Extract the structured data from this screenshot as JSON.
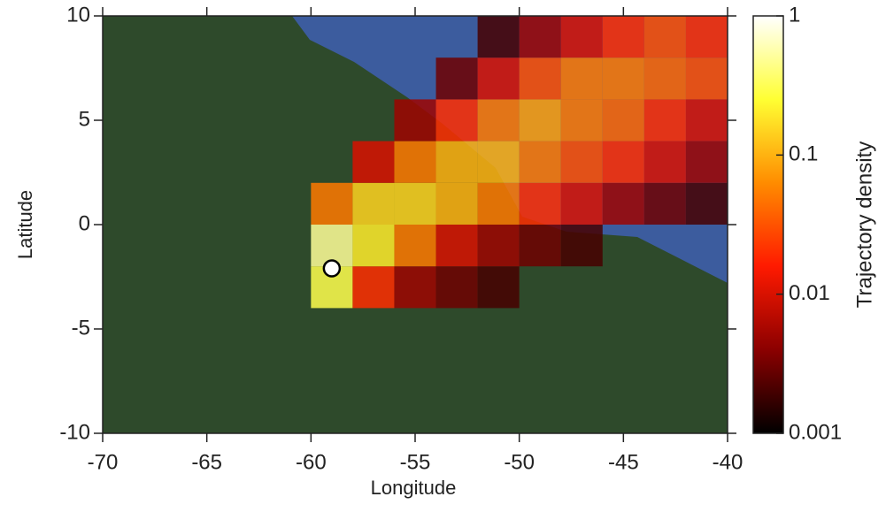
{
  "chart_data": {
    "type": "heatmap",
    "xlabel": "Longitude",
    "ylabel": "Latitude",
    "colorbar_label": "Trajectory density",
    "xlim": [
      -70,
      -40
    ],
    "xticks": [
      -70,
      -65,
      -60,
      -55,
      -50,
      -45,
      -40
    ],
    "ylim": [
      -10,
      10
    ],
    "yticks": [
      -10,
      -5,
      0,
      5,
      10
    ],
    "color_scale": "log",
    "clim": [
      0.001,
      1
    ],
    "cticks": [
      0.001,
      0.01,
      0.1,
      1
    ],
    "colormap": [
      "#000000",
      "#8b0000",
      "#ff1a00",
      "#ff8c00",
      "#ffff33",
      "#ffffff"
    ],
    "density": {
      "x_edges": [
        -60,
        -58,
        -56,
        -54,
        -52,
        -50,
        -48,
        -46,
        -44,
        -42,
        -40
      ],
      "y_edges": [
        -4,
        -2,
        0,
        2,
        4,
        6,
        8,
        10
      ],
      "values": [
        [
          0.3,
          0.02,
          0.005,
          0.003,
          0.002,
          null,
          null,
          null,
          null,
          null
        ],
        [
          0.5,
          0.2,
          0.05,
          0.01,
          0.005,
          0.003,
          0.002,
          null,
          null,
          null
        ],
        [
          0.05,
          0.15,
          0.15,
          0.1,
          0.05,
          0.02,
          0.01,
          0.005,
          0.003,
          0.002
        ],
        [
          null,
          0.01,
          0.05,
          0.1,
          0.1,
          0.05,
          0.03,
          0.02,
          0.01,
          0.005
        ],
        [
          null,
          null,
          0.005,
          0.02,
          0.05,
          0.08,
          0.05,
          0.04,
          0.02,
          0.01
        ],
        [
          null,
          null,
          null,
          0.003,
          0.01,
          0.03,
          0.05,
          0.05,
          0.04,
          0.03
        ],
        [
          null,
          null,
          null,
          null,
          0.002,
          0.005,
          0.01,
          0.02,
          0.03,
          0.02
        ]
      ]
    },
    "release_point": {
      "x": -59,
      "y": -2.1
    }
  }
}
